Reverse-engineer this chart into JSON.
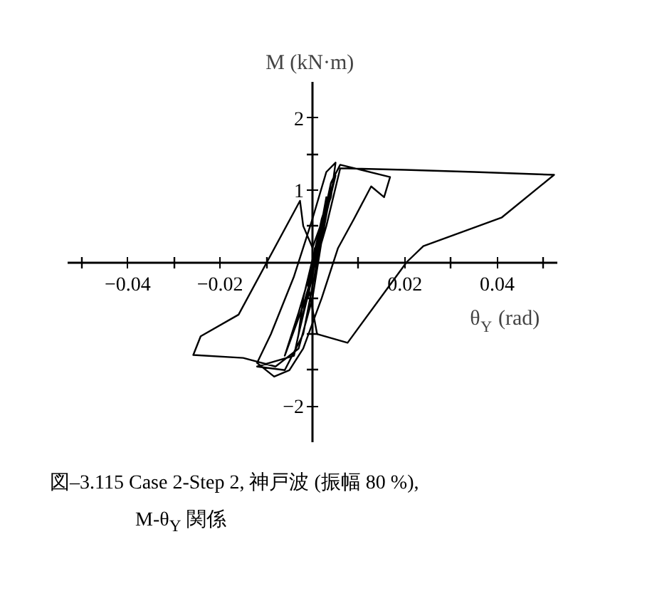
{
  "chart_data": {
    "type": "line",
    "xlabel": "θ$_{Y}$ (rad)",
    "ylabel": "M  (kN·m)",
    "annotations": [
      "図–3.115 Case 2-Step 2, 神戸波 (振幅 80 %),",
      "M-θ$_{Y}$ 関係"
    ],
    "xlim": [
      -0.053,
      0.053
    ],
    "ylim": [
      -2.5,
      2.5
    ],
    "xticks": [
      {
        "value": -0.05,
        "label": null
      },
      {
        "value": -0.04,
        "label": "−0.04"
      },
      {
        "value": -0.03,
        "label": null
      },
      {
        "value": -0.02,
        "label": "−0.02"
      },
      {
        "value": -0.01,
        "label": null
      },
      {
        "value": 0.01,
        "label": null
      },
      0.02,
      {
        "value": 0.03,
        "label": null
      },
      0.04,
      {
        "value": 0.05,
        "label": null
      }
    ],
    "yticks": [
      {
        "value": -2,
        "label": "−2"
      },
      {
        "value": -1.5,
        "label": null
      },
      {
        "value": -1,
        "label": null
      },
      {
        "value": -0.5,
        "label": null
      },
      {
        "value": 0.5,
        "label": null
      },
      1,
      {
        "value": 1.5,
        "label": null
      },
      2
    ],
    "x": [
      0,
      0.002,
      0.004,
      0.001,
      -0.002,
      -0.003,
      0.0,
      0.003,
      0.005,
      0.002,
      -0.003,
      -0.006,
      -0.002,
      0.003,
      0.006,
      0.0076,
      0.02,
      0.035,
      0.0523,
      0.041,
      0.024,
      0.0204,
      0.0076,
      0.001,
      -0.001,
      0.002,
      0.004,
      0.006,
      0.0168,
      0.0155,
      0.0127,
      0.009,
      0.0055,
      0.002,
      -0.002,
      -0.005,
      -0.0083,
      -0.012,
      -0.009,
      -0.004,
      0.0,
      0.003,
      0.005,
      0.004,
      0.0,
      -0.002,
      -0.0027,
      -0.016,
      -0.0242,
      -0.0258,
      -0.015,
      -0.008,
      -0.003,
      0.0,
      0.002,
      0.004,
      0.002,
      -0.001,
      -0.004,
      -0.012,
      -0.006,
      -0.002,
      0.001,
      0.003,
      0.001,
      -0.001,
      0.0005
    ],
    "series": [
      {
        "color": "#000000",
        "values": [
          0,
          0.6,
          1.0,
          0.3,
          -0.5,
          -1.0,
          -0.2,
          0.8,
          1.2,
          0.4,
          -0.7,
          -1.3,
          -0.6,
          0.5,
          1.3,
          1.3,
          1.28,
          1.25,
          1.21,
          0.62,
          0.22,
          0.0,
          -1.12,
          -1.0,
          -0.3,
          0.5,
          1.1,
          1.35,
          1.18,
          0.9,
          1.05,
          0.6,
          0.19,
          -0.5,
          -1.2,
          -1.5,
          -1.59,
          -1.4,
          -1.0,
          -0.2,
          0.6,
          1.25,
          1.38,
          0.9,
          0.2,
          0.5,
          0.85,
          -0.73,
          -1.03,
          -1.29,
          -1.33,
          -1.45,
          -1.2,
          -0.5,
          0.3,
          1.0,
          0.5,
          -0.4,
          -1.3,
          -1.45,
          -1.5,
          -1.0,
          0.0,
          0.9,
          0.2,
          -0.5,
          0.2
        ]
      }
    ]
  }
}
